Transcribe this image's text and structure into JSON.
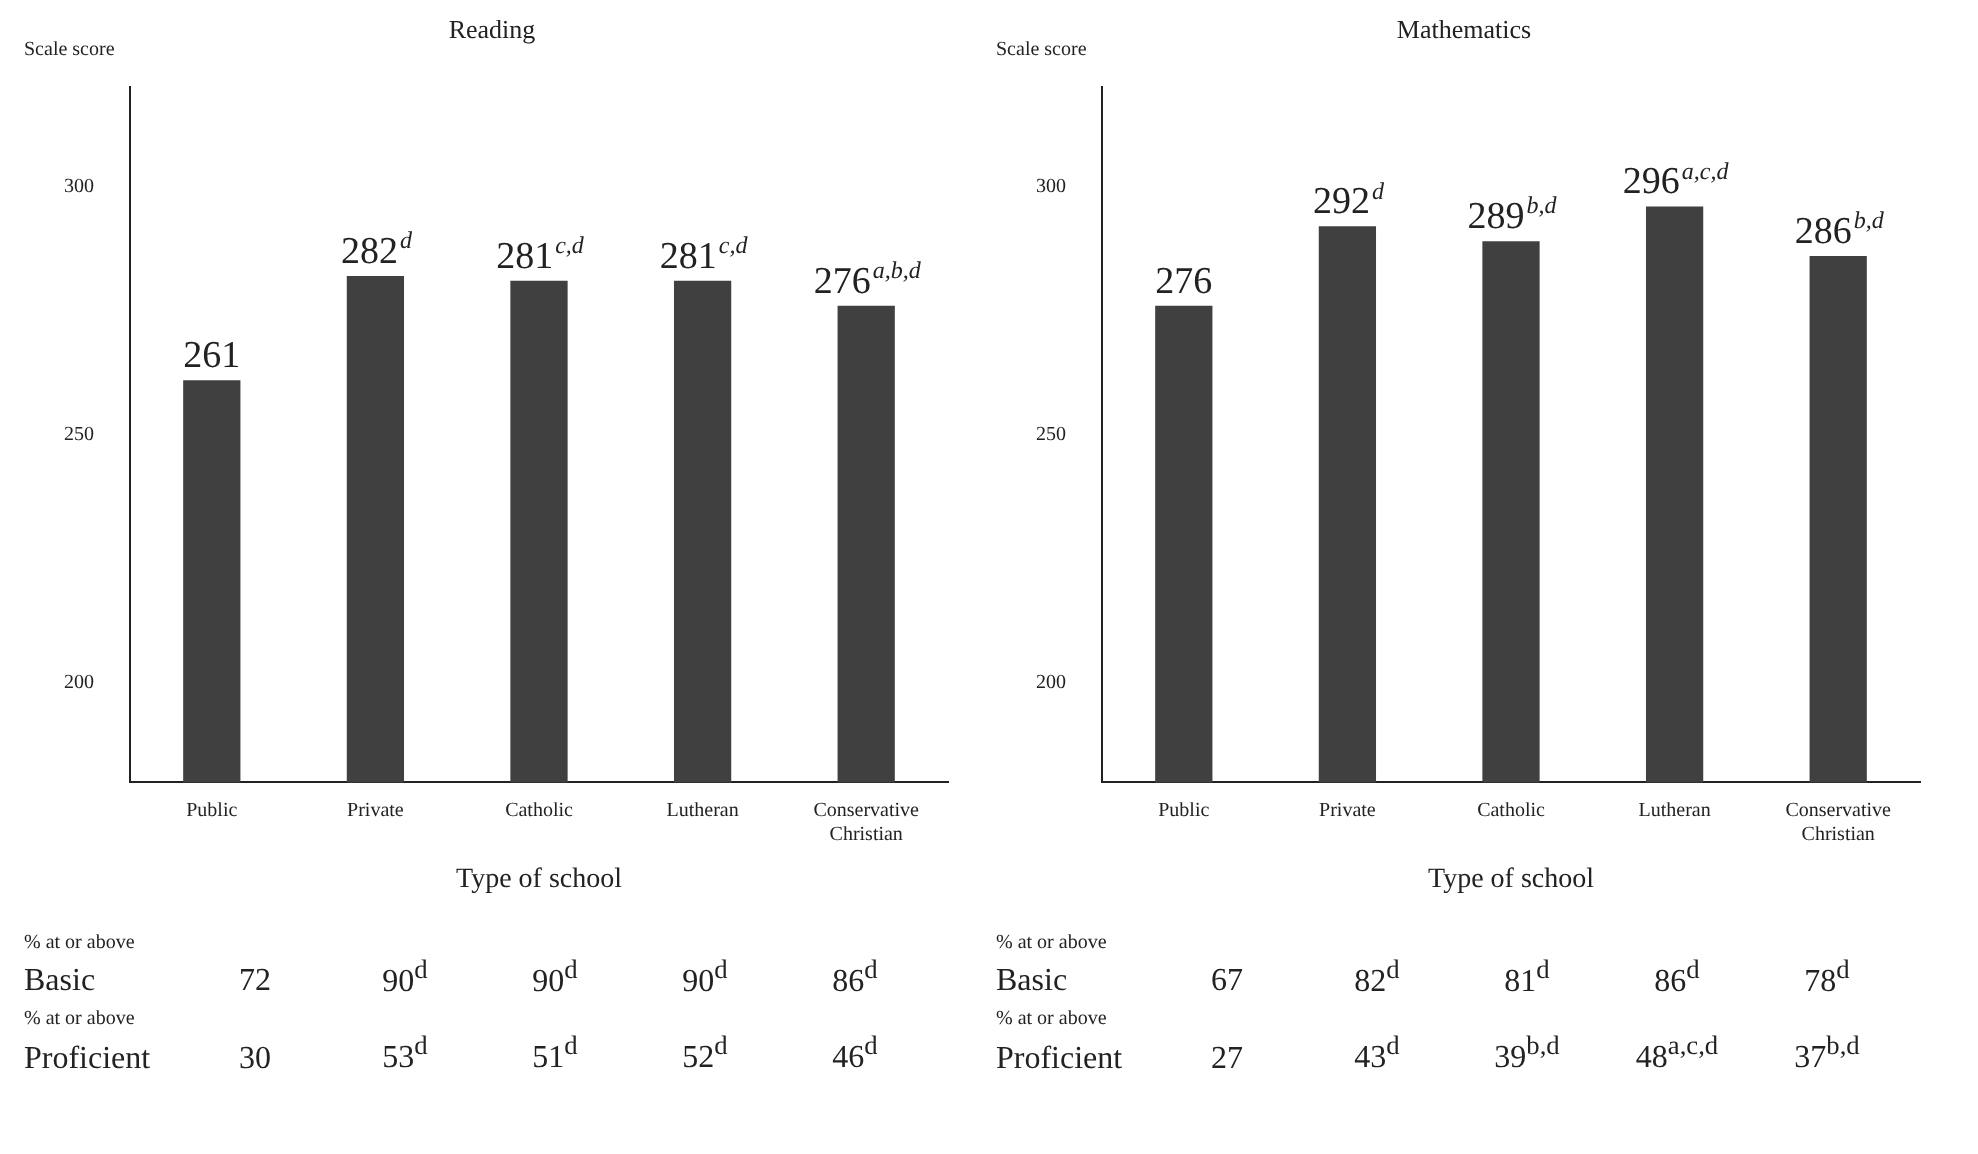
{
  "chart_data": [
    {
      "type": "bar",
      "title": "Reading",
      "ylabel": "Scale score",
      "xlabel": "Type of school",
      "categories": [
        "Public",
        "Private",
        "Catholic",
        "Lutheran",
        "Conservative Christian"
      ],
      "values": [
        261,
        282,
        281,
        281,
        276
      ],
      "color": "#404040",
      "value_labels": [
        "261",
        "282$^{d}$",
        "281$^{c,d}$",
        "281$^{c,d}$",
        "276$^{a,b,d}$"
      ],
      "ylim": [
        180,
        320
      ],
      "yticks": [
        200,
        250,
        300
      ],
      "grid": false,
      "legend": false,
      "annotations": [
        "% at or above",
        "Basic",
        "72",
        "90$^{d}$",
        "90$^{d}$",
        "90$^{d}$",
        "86$^{d}$",
        "% at or above",
        "Proficient",
        "30",
        "53$^{d}$",
        "51$^{d}$",
        "52$^{d}$",
        "46$^{d}$"
      ]
    },
    {
      "type": "bar",
      "title": "Mathematics",
      "ylabel": "Scale score",
      "xlabel": "Type of school",
      "categories": [
        "Public",
        "Private",
        "Catholic",
        "Lutheran",
        "Conservative Christian"
      ],
      "values": [
        276,
        292,
        289,
        296,
        286
      ],
      "color": "#404040",
      "value_labels": [
        "276",
        "292$^{d}$",
        "289$^{b,d}$",
        "296$^{a,c,d}$",
        "286$^{b,d}$"
      ],
      "ylim": [
        180,
        320
      ],
      "yticks": [
        200,
        250,
        300
      ],
      "grid": false,
      "legend": false,
      "annotations": [
        "% at or above",
        "Basic",
        "67",
        "82$^{d}$",
        "81$^{d}$",
        "86$^{d}$",
        "78$^{d}$",
        "% at or above",
        "Proficient",
        "27",
        "43$^{d}$",
        "39$^{b,d}$",
        "48$^{a,c,d}$",
        "37$^{b,d}$"
      ]
    }
  ]
}
